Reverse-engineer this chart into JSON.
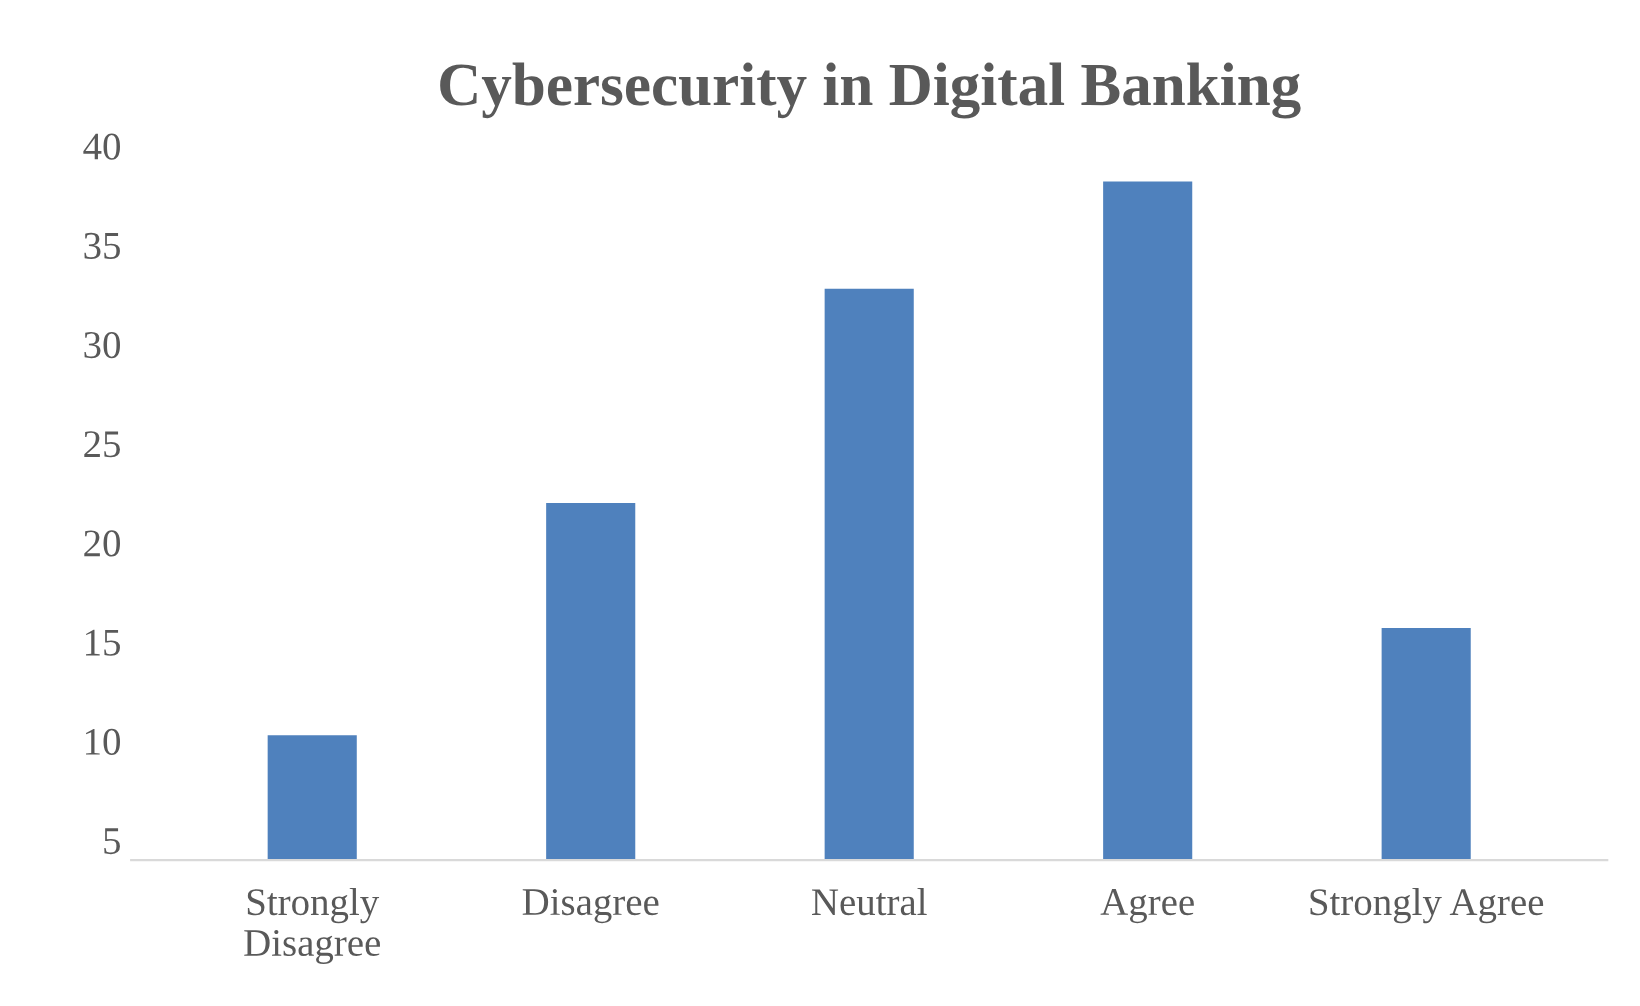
{
  "chart_data": {
    "type": "bar",
    "title": "Cybersecurity in Digital Banking",
    "categories": [
      "Strongly\nDisagree",
      "Disagree",
      "Neutral",
      "Agree",
      "Strongly Agree"
    ],
    "values": [
      10.3,
      22.0,
      32.8,
      38.2,
      15.7
    ],
    "color": "#4f81bd",
    "ylim": [
      4,
      40
    ],
    "yticks": [
      5,
      10,
      15,
      20,
      25,
      30,
      35,
      40
    ],
    "grid": false,
    "legend": false
  }
}
